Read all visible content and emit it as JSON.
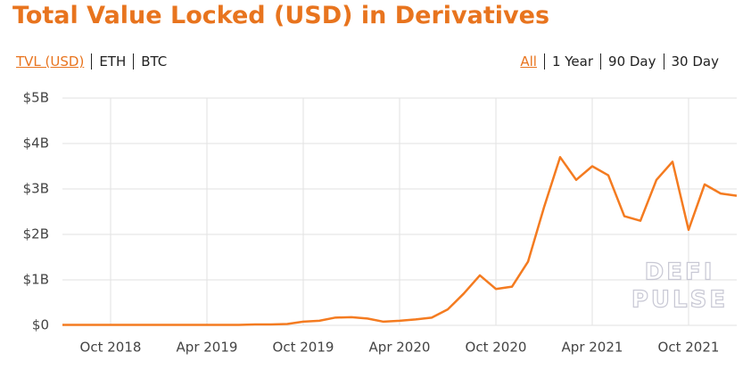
{
  "chart_data": {
    "type": "line",
    "title": "Total Value Locked (USD) in Derivatives",
    "links": [
      "TVL (USD)",
      "ETH",
      "BTC"
    ],
    "ranges": [
      "All",
      "1 Year",
      "90 Day",
      "30 Day"
    ],
    "watermark": [
      "DEFI",
      "PULSE"
    ],
    "color": "#f47b20",
    "grid": true,
    "x": [
      "2018-07",
      "2018-08",
      "2018-09",
      "2018-10",
      "2018-11",
      "2018-12",
      "2019-01",
      "2019-02",
      "2019-03",
      "2019-04",
      "2019-05",
      "2019-06",
      "2019-07",
      "2019-08",
      "2019-09",
      "2019-10",
      "2019-11",
      "2019-12",
      "2020-01",
      "2020-02",
      "2020-03",
      "2020-04",
      "2020-05",
      "2020-06",
      "2020-07",
      "2020-08",
      "2020-09",
      "2020-10",
      "2020-11",
      "2020-12",
      "2021-01",
      "2021-02",
      "2021-03",
      "2021-04",
      "2021-05",
      "2021-06",
      "2021-07",
      "2021-08",
      "2021-09",
      "2021-10",
      "2021-11",
      "2021-12",
      "2022-01"
    ],
    "values": [
      0.01,
      0.01,
      0.01,
      0.01,
      0.01,
      0.01,
      0.01,
      0.01,
      0.01,
      0.01,
      0.01,
      0.01,
      0.02,
      0.02,
      0.03,
      0.08,
      0.1,
      0.17,
      0.18,
      0.15,
      0.08,
      0.1,
      0.13,
      0.17,
      0.35,
      0.7,
      1.1,
      0.8,
      0.85,
      1.4,
      2.6,
      3.7,
      3.2,
      3.5,
      3.3,
      2.4,
      2.3,
      3.2,
      3.6,
      2.1,
      3.1,
      2.9,
      2.85
    ],
    "xlim": [
      "2018-07",
      "2022-01"
    ],
    "xticks": [
      {
        "value": "2018-10",
        "label": "Oct 2018"
      },
      {
        "value": "2019-04",
        "label": "Apr 2019"
      },
      {
        "value": "2019-10",
        "label": "Oct 2019"
      },
      {
        "value": "2020-04",
        "label": "Apr 2020"
      },
      {
        "value": "2020-10",
        "label": "Oct 2020"
      },
      {
        "value": "2021-04",
        "label": "Apr 2021"
      },
      {
        "value": "2021-10",
        "label": "Oct 2021"
      }
    ],
    "ylim": [
      0,
      5
    ],
    "yticks": [
      {
        "value": 0,
        "label": "$0"
      },
      {
        "value": 1,
        "label": "$1B"
      },
      {
        "value": 2,
        "label": "$2B"
      },
      {
        "value": 3,
        "label": "$3B"
      },
      {
        "value": 4,
        "label": "$4B"
      },
      {
        "value": 5,
        "label": "$5B"
      }
    ]
  }
}
